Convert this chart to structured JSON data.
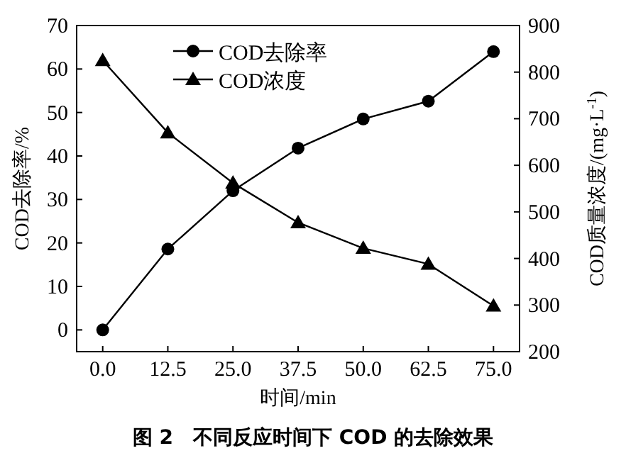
{
  "chart_data": {
    "type": "line",
    "title": "图 2　不同反应时间下 COD 的去除效果",
    "xlabel": "时间/min",
    "ylabel": "COD去除率/%",
    "y2label": "COD质量浓度/(mg·L$^{-1}$)",
    "x": [
      0,
      12.5,
      25,
      37.5,
      50,
      62.5,
      75
    ],
    "series": [
      {
        "name": "COD去除率",
        "color": "#000000",
        "marker": "circle",
        "values": [
          0,
          18.6,
          32,
          41.8,
          48.5,
          52.6,
          64
        ]
      },
      {
        "name": "COD浓度",
        "color": "#000000",
        "marker": "triangle",
        "axis": "y2",
        "values": [
          825,
          670,
          562,
          477,
          422,
          388,
          298
        ]
      }
    ],
    "xlim": [
      -5,
      80
    ],
    "xticks": [
      {
        "value": 0,
        "label": "0.0"
      },
      12.5,
      {
        "value": 25,
        "label": "25.0"
      },
      37.5,
      {
        "value": 50,
        "label": "50.0"
      },
      62.5,
      {
        "value": 75,
        "label": "75.0"
      }
    ],
    "ylim": [
      -5,
      70
    ],
    "yticks": [
      0,
      10,
      20,
      30,
      40,
      50,
      60,
      70
    ],
    "y2lim": [
      200,
      900
    ],
    "y2ticks": [
      200,
      300,
      400,
      500,
      600,
      700,
      800,
      900
    ],
    "legend": "top left",
    "grid": false,
    "line_style": "solid"
  }
}
